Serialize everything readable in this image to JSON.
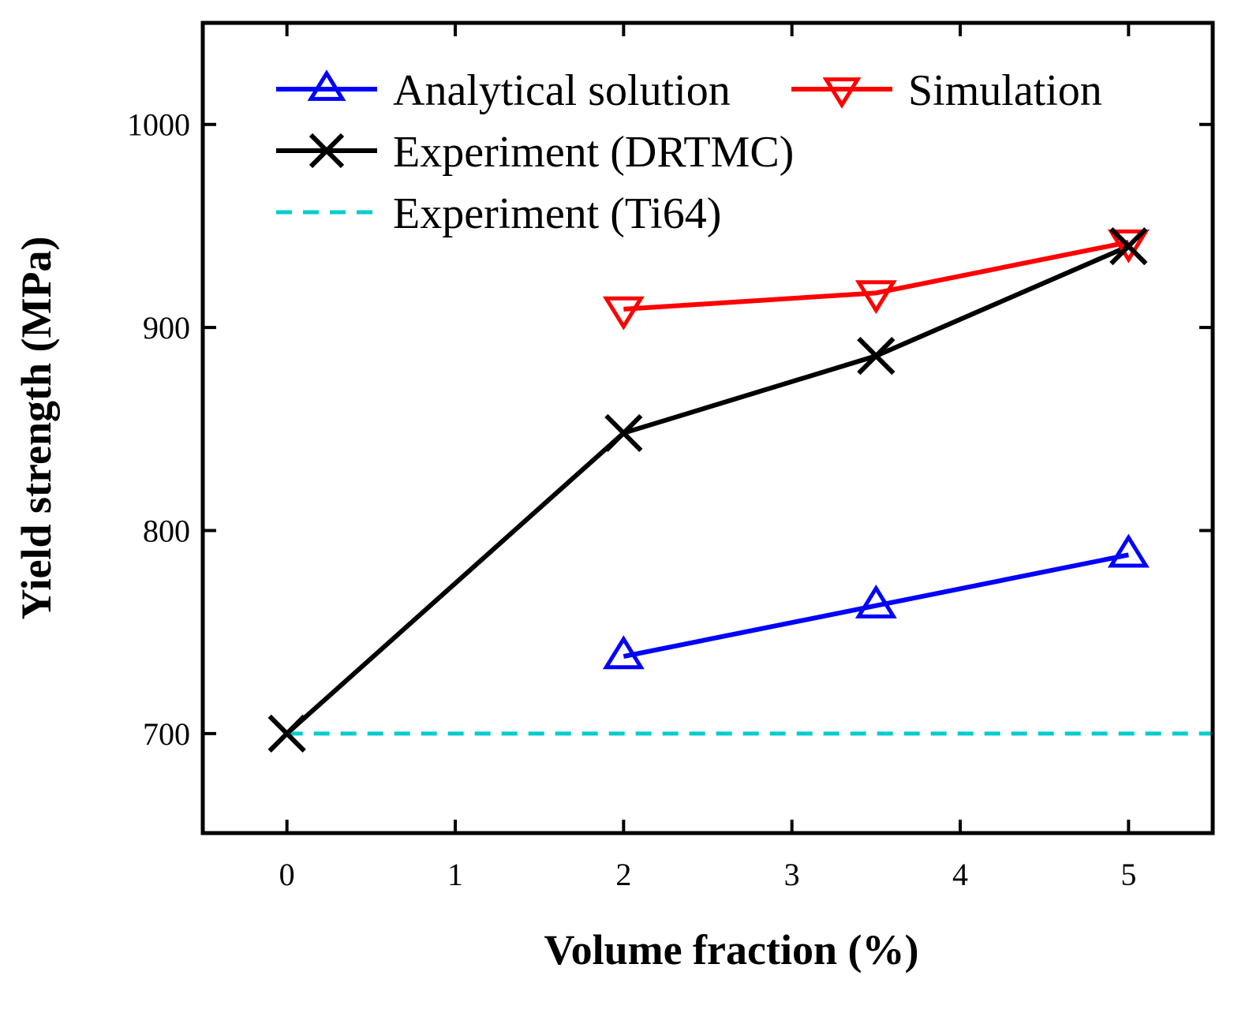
{
  "chart_data": {
    "type": "line",
    "xlabel": "Volume fraction (%)",
    "ylabel": "Yield strength (MPa)",
    "xlim": [
      -0.5,
      5.5
    ],
    "ylim": [
      651,
      1050
    ],
    "xticks": [
      "0",
      "1",
      "2",
      "3",
      "4",
      "5"
    ],
    "yticks": [
      "700",
      "800",
      "900",
      "1000"
    ],
    "grid": false,
    "legend_placement": "top",
    "series": [
      {
        "name": "Analytical solution",
        "color": "#0000ff",
        "marker": "triangle-up",
        "dash": "solid",
        "x": [
          2,
          3.5,
          5
        ],
        "y": [
          738,
          763,
          788
        ]
      },
      {
        "name": "Simulation",
        "color": "#ff0000",
        "marker": "triangle-down",
        "dash": "solid",
        "x": [
          2,
          3.5,
          5
        ],
        "y": [
          909,
          917,
          942
        ]
      },
      {
        "name": "Experiment (DRTMC)",
        "color": "#000000",
        "marker": "x",
        "dash": "solid",
        "x": [
          0,
          2,
          3.5,
          5
        ],
        "y": [
          700,
          848,
          886,
          940
        ]
      },
      {
        "name": "Experiment (Ti64)",
        "color": "#00cccc",
        "marker": "none",
        "dash": "dashed",
        "x": [
          0,
          5.5
        ],
        "y": [
          700,
          700
        ]
      }
    ]
  }
}
